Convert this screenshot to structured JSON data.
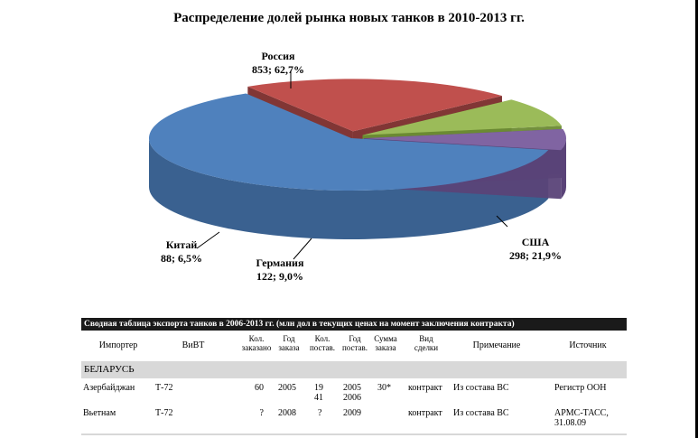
{
  "chart_data": {
    "type": "pie",
    "title": "Распределение долей рынка новых танков в 2010-2013 гг.",
    "slices": [
      {
        "name": "Россия",
        "value": 853,
        "percent": 62.7,
        "label": "853; 62,7%",
        "color": "#4f81bd",
        "side": "#3a6190"
      },
      {
        "name": "США",
        "value": 298,
        "percent": 21.9,
        "label": "298; 21,9%",
        "color": "#c0504d",
        "side": "#7a2b2a"
      },
      {
        "name": "Германия",
        "value": 122,
        "percent": 9.0,
        "label": "122; 9,0%",
        "color": "#9bbb59",
        "side": "#6b8a34"
      },
      {
        "name": "Китай",
        "value": 88,
        "percent": 6.5,
        "label": "88; 6,5%",
        "color": "#8064a2",
        "side": "#5a4378"
      }
    ],
    "style": "3d-exploded"
  },
  "table": {
    "title": "Сводная таблица экспорта танков в 2006-2013 гг. (млн дол в текущих ценах на момент заключения контракта)",
    "headers": {
      "importer": "Импортер",
      "weapon": "ВиВТ",
      "qty_ordered": [
        "Кол.",
        "заказано"
      ],
      "year_ordered": [
        "Год",
        "заказа"
      ],
      "qty_delivered": [
        "Кол.",
        "постав."
      ],
      "year_delivered": [
        "Год",
        "постав."
      ],
      "deal_sum": [
        "Сумма",
        "заказа"
      ],
      "deal_type": [
        "Вид",
        "сделки"
      ],
      "note": "Примечание",
      "source": "Источник"
    },
    "group": "БЕЛАРУСЬ",
    "rows": [
      {
        "importer": "Азербайджан",
        "weapon": "Т-72",
        "qty": "60",
        "year": "2005",
        "delivered_1": "19",
        "delivered_2": "41",
        "dyear_1": "2005",
        "dyear_2": "2006",
        "sum": "30*",
        "type": "контракт",
        "note": "Из состава ВС",
        "source_1": "Регистр ООН",
        "source_2": ""
      },
      {
        "importer": "Вьетнам",
        "weapon": "Т-72",
        "qty": "?",
        "year": "2008",
        "delivered_1": "?",
        "delivered_2": "",
        "dyear_1": "2009",
        "dyear_2": "",
        "sum": "",
        "type": "контракт",
        "note": "Из состава ВС",
        "source_1": "АРМС-ТАСС,",
        "source_2": "31.08.09"
      }
    ]
  }
}
